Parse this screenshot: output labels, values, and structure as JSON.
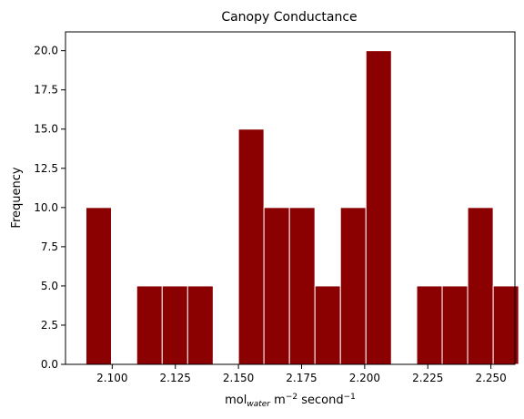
{
  "chart_data": {
    "type": "bar",
    "title": "Canopy Conductance",
    "xlabel": {
      "base": "mol",
      "subscript": "water",
      "middle": " m",
      "exp1": "−2",
      "rest": " second",
      "exp2": "−1"
    },
    "ylabel": "Frequency",
    "xlim": [
      2.0815,
      2.2595
    ],
    "ylim": [
      0,
      21.2
    ],
    "x_ticks": [
      {
        "value": 2.1,
        "label": "2.100"
      },
      {
        "value": 2.125,
        "label": "2.125"
      },
      {
        "value": 2.15,
        "label": "2.150"
      },
      {
        "value": 2.175,
        "label": "2.175"
      },
      {
        "value": 2.2,
        "label": "2.200"
      },
      {
        "value": 2.225,
        "label": "2.225"
      },
      {
        "value": 2.25,
        "label": "2.250"
      }
    ],
    "y_ticks": [
      {
        "value": 0,
        "label": "0.0"
      },
      {
        "value": 2.5,
        "label": "2.5"
      },
      {
        "value": 5,
        "label": "5.0"
      },
      {
        "value": 7.5,
        "label": "7.5"
      },
      {
        "value": 10,
        "label": "10.0"
      },
      {
        "value": 12.5,
        "label": "12.5"
      },
      {
        "value": 15,
        "label": "15.0"
      },
      {
        "value": 17.5,
        "label": "17.5"
      },
      {
        "value": 20,
        "label": "20.0"
      }
    ],
    "bins": [
      {
        "x0": 2.0896,
        "x1": 2.0997,
        "count": 10
      },
      {
        "x0": 2.1097,
        "x1": 2.1198,
        "count": 5
      },
      {
        "x0": 2.1198,
        "x1": 2.1299,
        "count": 5
      },
      {
        "x0": 2.1299,
        "x1": 2.14,
        "count": 5
      },
      {
        "x0": 2.15,
        "x1": 2.1601,
        "count": 15
      },
      {
        "x0": 2.1601,
        "x1": 2.1702,
        "count": 10
      },
      {
        "x0": 2.1702,
        "x1": 2.1803,
        "count": 10
      },
      {
        "x0": 2.1803,
        "x1": 2.1904,
        "count": 5
      },
      {
        "x0": 2.1904,
        "x1": 2.2005,
        "count": 10
      },
      {
        "x0": 2.2005,
        "x1": 2.2106,
        "count": 20
      },
      {
        "x0": 2.2206,
        "x1": 2.2307,
        "count": 5
      },
      {
        "x0": 2.2307,
        "x1": 2.2408,
        "count": 5
      },
      {
        "x0": 2.2408,
        "x1": 2.2509,
        "count": 10
      },
      {
        "x0": 2.2509,
        "x1": 2.261,
        "count": 5
      }
    ],
    "bar_color": "#8b0000",
    "edge_color": "#ffffff",
    "grid": false
  }
}
